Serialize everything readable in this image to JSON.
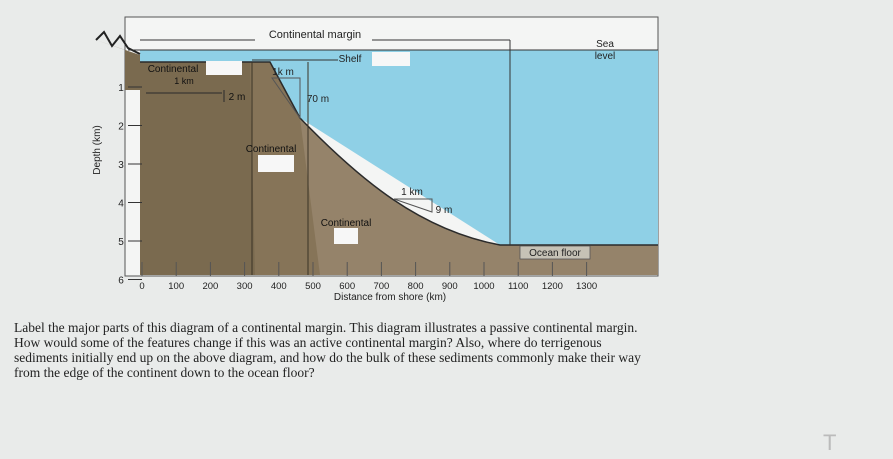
{
  "diagram": {
    "top_label": "Continental margin",
    "sea_level_line1": "Sea",
    "sea_level_line2": "level",
    "shelf_label": "Shelf",
    "continental_shelf_label": "Continental",
    "continental_shelf_scale": "1 km",
    "slope_scale_horizontal": "1k m",
    "slope_scale_vertical": "70 m",
    "shelf_scale_vertical": "2 m",
    "continental_slope_label": "Continental",
    "rise_scale_horizontal": "1 km",
    "rise_scale_vertical": "9 m",
    "continental_rise_label": "Continental",
    "ocean_floor_label": "Ocean floor",
    "y_axis_title": "Depth (km)",
    "y_ticks": [
      "1",
      "2",
      "3",
      "4",
      "5",
      "6"
    ],
    "x_ticks": [
      "0",
      "100",
      "200",
      "300",
      "400",
      "500",
      "600",
      "700",
      "800",
      "900",
      "1000",
      "1100",
      "1200",
      "1300"
    ],
    "x_axis_title": "Distance from shore (km)",
    "colors": {
      "ocean": "#8fd0e6",
      "continent": "#7a6a4f",
      "sediment": "#95836a",
      "background": "#e9ebea"
    }
  },
  "question": {
    "lines": [
      "Label the major parts of this diagram of a continental margin.  This diagram illustrates a passive continental margin.",
      "How would some of the features change if this was an active continental margin? Also, where do terrigenous",
      "sediments initially end up on the above diagram, and how do the bulk of these sediments commonly make their way",
      "from the edge of the continent down to the ocean floor?"
    ]
  },
  "cursor": "T"
}
